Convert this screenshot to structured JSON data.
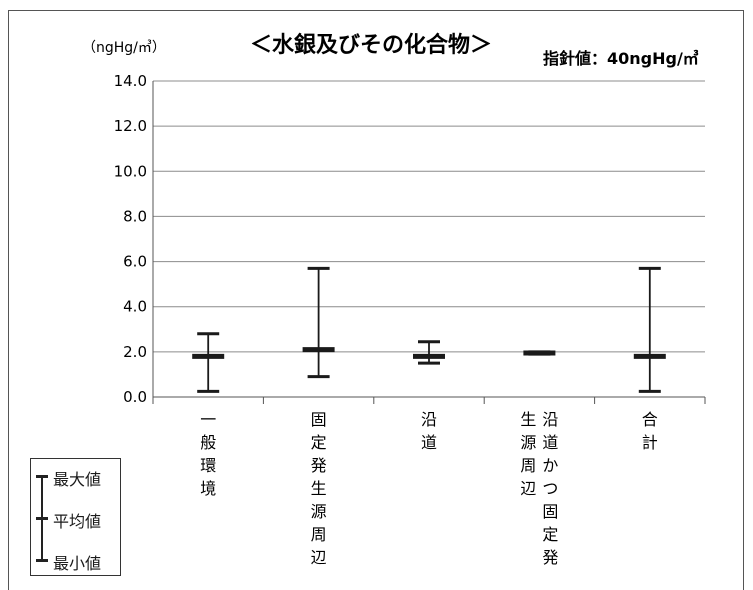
{
  "chart_data": {
    "type": "error-bar",
    "title": "＜水銀及びその化合物＞",
    "unit_label": "（ngHg/㎥）",
    "guideline": "指針値：40ngHg/㎥",
    "ylim": [
      0,
      14
    ],
    "yticks": [
      "0.0",
      "2.0",
      "4.0",
      "6.0",
      "8.0",
      "10.0",
      "12.0",
      "14.0"
    ],
    "grid": true,
    "categories": [
      {
        "columns": [
          "一般環境"
        ]
      },
      {
        "columns": [
          "固定発生源周辺"
        ]
      },
      {
        "columns": [
          "沿道"
        ]
      },
      {
        "columns": [
          "沿道かつ固定発",
          "生源周辺"
        ]
      },
      {
        "columns": [
          "合計"
        ]
      }
    ],
    "series": [
      {
        "max": 2.8,
        "mean": 1.8,
        "min": 0.25
      },
      {
        "max": 5.7,
        "mean": 2.1,
        "min": 0.9
      },
      {
        "max": 2.45,
        "mean": 1.8,
        "min": 1.5
      },
      {
        "max": 2.0,
        "mean": 1.95,
        "min": 1.9
      },
      {
        "max": 5.7,
        "mean": 1.8,
        "min": 0.25
      }
    ]
  },
  "legend": {
    "max_label": "最大値",
    "mean_label": "平均値",
    "min_label": "最小値"
  },
  "colors": {
    "grid": "#8c8c8c",
    "mark": "#1a1a1a"
  }
}
